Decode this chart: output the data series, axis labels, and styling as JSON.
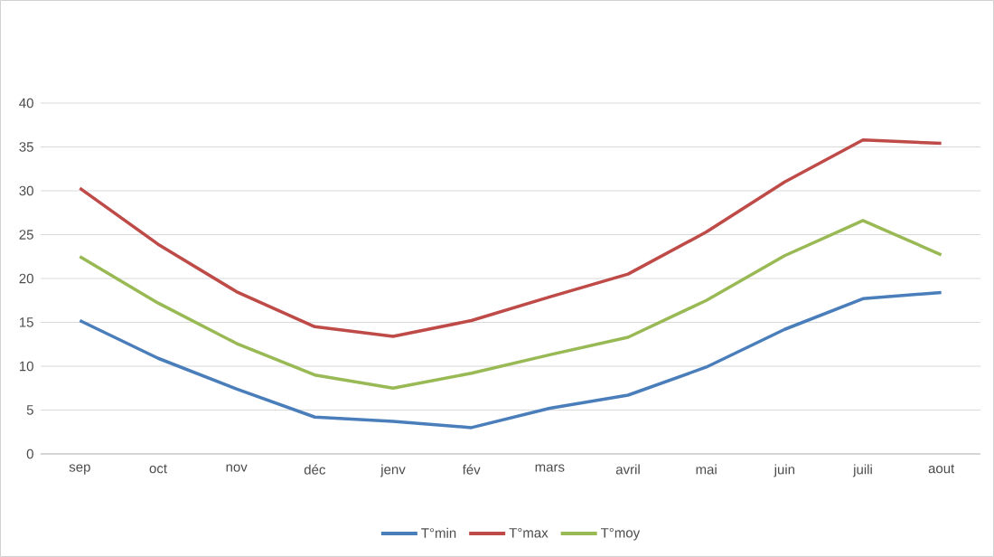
{
  "chart_data": {
    "type": "line",
    "categories": [
      "sep",
      "oct",
      "nov",
      "déc",
      "jenv",
      "fév",
      "mars",
      "avril",
      "mai",
      "juin",
      "juili",
      "aout"
    ],
    "series": [
      {
        "name": "T°min",
        "color": "#4a7ebb",
        "values": [
          15.2,
          10.9,
          7.4,
          4.2,
          3.7,
          3.0,
          5.2,
          6.7,
          9.9,
          14.2,
          17.7,
          18.4
        ]
      },
      {
        "name": "T°max",
        "color": "#be4b48",
        "values": [
          30.3,
          23.9,
          18.5,
          14.5,
          13.4,
          15.2,
          17.9,
          20.5,
          25.3,
          31.0,
          35.8,
          35.4
        ]
      },
      {
        "name": "T°moy",
        "color": "#98b954",
        "values": [
          22.5,
          17.2,
          12.6,
          9.0,
          7.5,
          9.2,
          11.3,
          13.3,
          17.5,
          22.6,
          26.6,
          22.7
        ]
      }
    ],
    "ylim": [
      0,
      40
    ],
    "yticks": [
      0,
      5,
      10,
      15,
      20,
      25,
      30,
      35,
      40
    ],
    "grid": "y",
    "legend": "bottom",
    "marker": "none",
    "line_style": "solid"
  }
}
